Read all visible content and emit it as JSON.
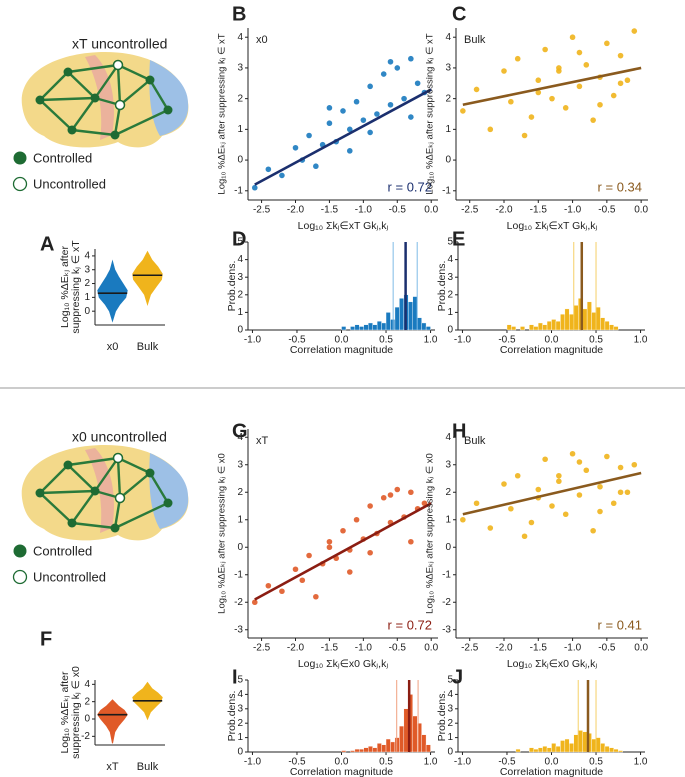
{
  "diagrams": [
    {
      "title": "xT uncontrolled",
      "controlled": "Controlled",
      "uncontrolled": "Uncontrolled"
    },
    {
      "title": "x0 uncontrolled",
      "controlled": "Controlled",
      "uncontrolled": "Uncontrolled"
    }
  ],
  "chart_data": [
    {
      "type": "violin",
      "label": "A",
      "ylabel": [
        "Log₁₀ %ΔEₖⱼ after",
        "suppressing kⱼ ∈ xT"
      ],
      "categories": [
        "x0",
        "Bulk"
      ],
      "ylim": [
        -1,
        4.5
      ],
      "yticks": [
        0,
        1,
        2,
        3,
        4
      ],
      "median_color": "#1a1a1a",
      "violins": [
        {
          "color": "#1a7abf",
          "median": 1.3,
          "y": [
            -0.7,
            0,
            0.5,
            1,
            1.5,
            2,
            2.5,
            3,
            3.6
          ],
          "density": [
            0,
            0.2,
            0.5,
            0.9,
            1,
            0.7,
            0.4,
            0.15,
            0
          ]
        },
        {
          "color": "#f0b41c",
          "median": 2.6,
          "y": [
            0.5,
            1.2,
            1.8,
            2.3,
            2.7,
            3.2,
            3.7,
            4.3
          ],
          "density": [
            0,
            0.2,
            0.6,
            0.95,
            1,
            0.7,
            0.3,
            0
          ]
        }
      ]
    },
    {
      "type": "scatter",
      "label": "B",
      "annotation": "x0",
      "r_label": "r = 0.72",
      "xlabel": "Log₁₀ Σkⱼ∈xT Gkⱼ,kⱼ",
      "ylabel": "Log₁₀ %ΔEₖⱼ after suppressing kⱼ ∈ xT",
      "xlim": [
        -2.7,
        0.1
      ],
      "ylim": [
        -1.3,
        4.3
      ],
      "xticks": [
        -2.5,
        {
          "value": -2,
          "label": "-2.0"
        },
        -1.5,
        {
          "value": -1,
          "label": "-1.0"
        },
        -0.5,
        {
          "value": 0,
          "label": "0.0"
        }
      ],
      "yticks": [
        -1,
        0,
        1,
        2,
        3,
        4
      ],
      "series": [
        {
          "color": "#1a7abf",
          "x": [
            -2.6,
            -2.4,
            -2.2,
            -2.0,
            -1.9,
            -1.8,
            -1.6,
            -1.5,
            -1.4,
            -1.3,
            -1.2,
            -1.1,
            -1.0,
            -0.9,
            -0.8,
            -0.7,
            -0.6,
            -0.5,
            -0.4,
            -0.3,
            -0.2,
            -0.1,
            -1.7,
            -1.2,
            -0.6,
            -0.3,
            -0.9,
            -1.5
          ],
          "values": [
            -0.9,
            -0.3,
            -0.5,
            0.4,
            0.0,
            0.8,
            0.5,
            1.2,
            0.6,
            1.6,
            1.0,
            1.9,
            1.3,
            2.4,
            1.5,
            2.8,
            1.8,
            3.0,
            2.0,
            3.3,
            2.5,
            2.2,
            -0.2,
            0.3,
            3.2,
            1.4,
            0.9,
            1.7
          ]
        },
        {
          "color": "#1b2f6e",
          "style": "line",
          "x": [
            -2.6,
            0.0
          ],
          "values": [
            -0.8,
            2.3
          ]
        }
      ]
    },
    {
      "type": "scatter",
      "label": "C",
      "annotation": "Bulk",
      "r_label": "r = 0.34",
      "xlabel": "Log₁₀ Σkⱼ∈xT Gkⱼ,kⱼ",
      "ylabel": "Log₁₀ %ΔEₖⱼ after suppressing kⱼ ∈ xT",
      "xlim": [
        -2.7,
        0.1
      ],
      "ylim": [
        -1.3,
        4.3
      ],
      "xticks": [
        -2.5,
        {
          "value": -2,
          "label": "-2.0"
        },
        -1.5,
        {
          "value": -1,
          "label": "-1.0"
        },
        -0.5,
        {
          "value": 0,
          "label": "0.0"
        }
      ],
      "yticks": [
        -1,
        0,
        1,
        2,
        3,
        4
      ],
      "series": [
        {
          "color": "#f0b41c",
          "x": [
            -2.6,
            -2.4,
            -2.2,
            -2.0,
            -1.9,
            -1.8,
            -1.6,
            -1.5,
            -1.4,
            -1.3,
            -1.2,
            -1.1,
            -1.0,
            -0.9,
            -0.8,
            -0.7,
            -0.6,
            -0.5,
            -0.4,
            -0.3,
            -0.2,
            -0.1,
            -1.7,
            -1.2,
            -0.6,
            -0.3,
            -0.9,
            -1.5
          ],
          "values": [
            1.6,
            2.3,
            1.0,
            2.9,
            1.9,
            3.3,
            1.4,
            2.6,
            3.6,
            2.0,
            2.9,
            1.7,
            4.0,
            2.4,
            3.1,
            1.3,
            2.7,
            3.8,
            2.1,
            3.4,
            2.6,
            4.2,
            0.8,
            3.0,
            1.8,
            2.5,
            3.5,
            2.2
          ]
        },
        {
          "color": "#8a5a1e",
          "style": "line",
          "x": [
            -2.6,
            0.0
          ],
          "values": [
            1.8,
            3.0
          ]
        }
      ]
    },
    {
      "type": "histogram",
      "label": "D",
      "ylabel": "Prob.dens.",
      "xlabel": "Correlation magnitude",
      "xlim": [
        -1.05,
        1.05
      ],
      "ylim": [
        0,
        5
      ],
      "xticks": [
        {
          "value": -1,
          "label": "-1.0"
        },
        -0.5,
        {
          "value": 0,
          "label": "0.0"
        },
        0.5,
        {
          "value": 1,
          "label": "1.0"
        }
      ],
      "yticks": [
        0,
        1,
        2,
        3,
        4,
        5
      ],
      "color": "#1a7abf",
      "mean_color": "#1b2f6e",
      "ci_color": "#7fbbe6",
      "bins": [
        -0.5,
        -0.45,
        -0.4,
        -0.35,
        -0.3,
        -0.25,
        -0.2,
        -0.15,
        -0.1,
        -0.05,
        0,
        0.05,
        0.1,
        0.15,
        0.2,
        0.25,
        0.3,
        0.35,
        0.4,
        0.45,
        0.5,
        0.55,
        0.6,
        0.65,
        0.7,
        0.75,
        0.8,
        0.85,
        0.9,
        0.95,
        1.0
      ],
      "values": [
        0,
        0,
        0,
        0,
        0,
        0,
        0,
        0,
        0,
        0,
        0.2,
        0,
        0.2,
        0.3,
        0.2,
        0.3,
        0.4,
        0.3,
        0.5,
        0.4,
        1.0,
        0.6,
        1.3,
        1.8,
        2.0,
        1.6,
        1.9,
        0.7,
        0.4,
        0.2
      ],
      "mean": 0.72,
      "ci": [
        0.58,
        0.85
      ]
    },
    {
      "type": "histogram",
      "label": "E",
      "ylabel": "Prob.dens.",
      "xlabel": "Correlation magnitude",
      "xlim": [
        -1.05,
        1.05
      ],
      "ylim": [
        0,
        5
      ],
      "xticks": [
        {
          "value": -1,
          "label": "-1.0"
        },
        -0.5,
        {
          "value": 0,
          "label": "0.0"
        },
        0.5,
        {
          "value": 1,
          "label": "1.0"
        }
      ],
      "yticks": [
        0,
        1,
        2,
        3,
        4,
        5
      ],
      "color": "#f0b41c",
      "mean_color": "#8a5a1e",
      "ci_color": "#f5d067",
      "bins": [
        -0.5,
        -0.45,
        -0.4,
        -0.35,
        -0.3,
        -0.25,
        -0.2,
        -0.15,
        -0.1,
        -0.05,
        0,
        0.05,
        0.1,
        0.15,
        0.2,
        0.25,
        0.3,
        0.35,
        0.4,
        0.45,
        0.5,
        0.55,
        0.6,
        0.65,
        0.7,
        0.75,
        0.8,
        0.85,
        0.9,
        0.95,
        1.0
      ],
      "values": [
        0.3,
        0.2,
        0,
        0.2,
        0,
        0.3,
        0.2,
        0.4,
        0.3,
        0.5,
        0.6,
        0.5,
        0.9,
        1.2,
        0.9,
        1.4,
        1.8,
        1.2,
        1.6,
        1.0,
        1.3,
        0.7,
        0.5,
        0.3,
        0.2,
        0,
        0,
        0,
        0,
        0
      ],
      "mean": 0.34,
      "ci": [
        0.25,
        0.5
      ]
    },
    {
      "type": "violin",
      "label": "F",
      "ylabel": [
        "Log₁₀ %ΔEₖⱼ after",
        "suppressing kⱼ ∈ x0"
      ],
      "categories": [
        "xT",
        "Bulk"
      ],
      "ylim": [
        -3,
        4.5
      ],
      "yticks": [
        -2,
        0,
        2,
        4
      ],
      "median_color": "#1a1a1a",
      "violins": [
        {
          "color": "#e05a28",
          "median": 0.5,
          "y": [
            -2.8,
            -1.5,
            -0.8,
            0,
            0.5,
            1,
            1.5,
            2.2
          ],
          "density": [
            0,
            0.15,
            0.4,
            0.8,
            1,
            0.8,
            0.4,
            0
          ]
        },
        {
          "color": "#f0b41c",
          "median": 2.1,
          "y": [
            0,
            0.8,
            1.5,
            2,
            2.5,
            3,
            3.5,
            4.2
          ],
          "density": [
            0,
            0.2,
            0.6,
            0.9,
            1,
            0.7,
            0.3,
            0
          ]
        }
      ]
    },
    {
      "type": "scatter",
      "label": "G",
      "annotation": "xT",
      "r_label": "r = 0.72",
      "xlabel": "Log₁₀ Σkⱼ∈x0 Gkⱼ,kⱼ",
      "ylabel": "Log₁₀ %ΔEₖⱼ after suppressing kⱼ ∈ x0",
      "xlim": [
        -2.7,
        0.1
      ],
      "ylim": [
        -3.3,
        4.3
      ],
      "xticks": [
        -2.5,
        {
          "value": -2,
          "label": "-2.0"
        },
        -1.5,
        {
          "value": -1,
          "label": "-1.0"
        },
        -0.5,
        {
          "value": 0,
          "label": "0.0"
        }
      ],
      "yticks": [
        -3,
        -2,
        -1,
        0,
        1,
        2,
        3,
        4
      ],
      "series": [
        {
          "color": "#e05a28",
          "x": [
            -2.6,
            -2.4,
            -2.2,
            -2.0,
            -1.9,
            -1.8,
            -1.6,
            -1.5,
            -1.4,
            -1.3,
            -1.2,
            -1.1,
            -1.0,
            -0.9,
            -0.8,
            -0.7,
            -0.6,
            -0.5,
            -0.4,
            -0.3,
            -0.2,
            -0.1,
            -1.7,
            -1.2,
            -0.6,
            -0.3,
            -0.9,
            -1.5
          ],
          "values": [
            -2.0,
            -1.4,
            -1.6,
            -0.8,
            -1.2,
            -0.3,
            -0.6,
            0.2,
            -0.4,
            0.6,
            -0.1,
            1.0,
            0.3,
            1.5,
            0.5,
            1.8,
            0.9,
            2.1,
            1.1,
            2.0,
            1.4,
            1.6,
            -1.8,
            -0.9,
            1.9,
            0.2,
            -0.2,
            0.0
          ]
        },
        {
          "color": "#8b1d12",
          "style": "line",
          "x": [
            -2.6,
            0.0
          ],
          "values": [
            -1.9,
            1.6
          ]
        }
      ]
    },
    {
      "type": "scatter",
      "label": "H",
      "annotation": "Bulk",
      "r_label": "r = 0.41",
      "xlabel": "Log₁₀ Σkⱼ∈x0 Gkⱼ,kⱼ",
      "ylabel": "Log₁₀ %ΔEₖⱼ after suppressing kⱼ ∈ x0",
      "xlim": [
        -2.7,
        0.1
      ],
      "ylim": [
        -3.3,
        4.3
      ],
      "xticks": [
        -2.5,
        {
          "value": -2,
          "label": "-2.0"
        },
        -1.5,
        {
          "value": -1,
          "label": "-1.0"
        },
        -0.5,
        {
          "value": 0,
          "label": "0.0"
        }
      ],
      "yticks": [
        -3,
        -2,
        -1,
        0,
        1,
        2,
        3,
        4
      ],
      "series": [
        {
          "color": "#f0b41c",
          "x": [
            -2.6,
            -2.4,
            -2.2,
            -2.0,
            -1.9,
            -1.8,
            -1.6,
            -1.5,
            -1.4,
            -1.3,
            -1.2,
            -1.1,
            -1.0,
            -0.9,
            -0.8,
            -0.7,
            -0.6,
            -0.5,
            -0.4,
            -0.3,
            -0.2,
            -0.1,
            -1.7,
            -1.2,
            -0.6,
            -0.3,
            -0.9,
            -1.5
          ],
          "values": [
            1.0,
            1.6,
            0.7,
            2.3,
            1.4,
            2.6,
            0.9,
            2.1,
            3.2,
            1.5,
            2.4,
            1.2,
            3.4,
            1.9,
            2.8,
            0.6,
            2.2,
            3.3,
            1.6,
            2.9,
            2.0,
            3.0,
            0.4,
            2.6,
            1.3,
            2.0,
            3.1,
            1.8
          ]
        },
        {
          "color": "#8a5a1e",
          "style": "line",
          "x": [
            -2.6,
            0.0
          ],
          "values": [
            1.2,
            2.7
          ]
        }
      ]
    },
    {
      "type": "histogram",
      "label": "I",
      "ylabel": "Prob.dens.",
      "xlabel": "Correlation magnitude",
      "xlim": [
        -1.05,
        1.05
      ],
      "ylim": [
        0,
        5
      ],
      "xticks": [
        {
          "value": -1,
          "label": "-1.0"
        },
        -0.5,
        {
          "value": 0,
          "label": "0.0"
        },
        0.5,
        {
          "value": 1,
          "label": "1.0"
        }
      ],
      "yticks": [
        0,
        1,
        2,
        3,
        4,
        5
      ],
      "color": "#e05a28",
      "mean_color": "#8b1d12",
      "ci_color": "#f0a080",
      "bins": [
        -0.5,
        -0.45,
        -0.4,
        -0.35,
        -0.3,
        -0.25,
        -0.2,
        -0.15,
        -0.1,
        -0.05,
        0,
        0.05,
        0.1,
        0.15,
        0.2,
        0.25,
        0.3,
        0.35,
        0.4,
        0.45,
        0.5,
        0.55,
        0.6,
        0.65,
        0.7,
        0.75,
        0.8,
        0.85,
        0.9,
        0.95,
        1.0
      ],
      "values": [
        0,
        0,
        0,
        0,
        0,
        0,
        0,
        0,
        0,
        0,
        0.1,
        0,
        0.1,
        0.2,
        0.2,
        0.3,
        0.4,
        0.3,
        0.6,
        0.5,
        0.9,
        0.7,
        1.0,
        1.8,
        3.0,
        4.0,
        2.5,
        2.0,
        1.2,
        0.5
      ],
      "mean": 0.76,
      "ci": [
        0.62,
        0.86
      ]
    },
    {
      "type": "histogram",
      "label": "J",
      "ylabel": "Prob.dens.",
      "xlabel": "Correlation magnitude",
      "xlim": [
        -1.05,
        1.05
      ],
      "ylim": [
        0,
        5
      ],
      "xticks": [
        {
          "value": -1,
          "label": "-1.0"
        },
        -0.5,
        {
          "value": 0,
          "label": "0.0"
        },
        0.5,
        {
          "value": 1,
          "label": "1.0"
        }
      ],
      "yticks": [
        0,
        1,
        2,
        3,
        4,
        5
      ],
      "color": "#f0b41c",
      "mean_color": "#8a5a1e",
      "ci_color": "#f5d067",
      "bins": [
        -0.5,
        -0.45,
        -0.4,
        -0.35,
        -0.3,
        -0.25,
        -0.2,
        -0.15,
        -0.1,
        -0.05,
        0,
        0.05,
        0.1,
        0.15,
        0.2,
        0.25,
        0.3,
        0.35,
        0.4,
        0.45,
        0.5,
        0.55,
        0.6,
        0.65,
        0.7,
        0.75,
        0.8,
        0.85,
        0.9,
        0.95,
        1.0
      ],
      "values": [
        0,
        0,
        0.2,
        0,
        0,
        0.3,
        0.2,
        0.3,
        0.4,
        0.3,
        0.6,
        0.4,
        0.8,
        0.9,
        0.6,
        1.2,
        1.5,
        1.4,
        1.3,
        0.9,
        1.0,
        0.6,
        0.4,
        0.3,
        0.2,
        0.1,
        0,
        0,
        0,
        0
      ],
      "mean": 0.41,
      "ci": [
        0.3,
        0.5
      ]
    }
  ]
}
